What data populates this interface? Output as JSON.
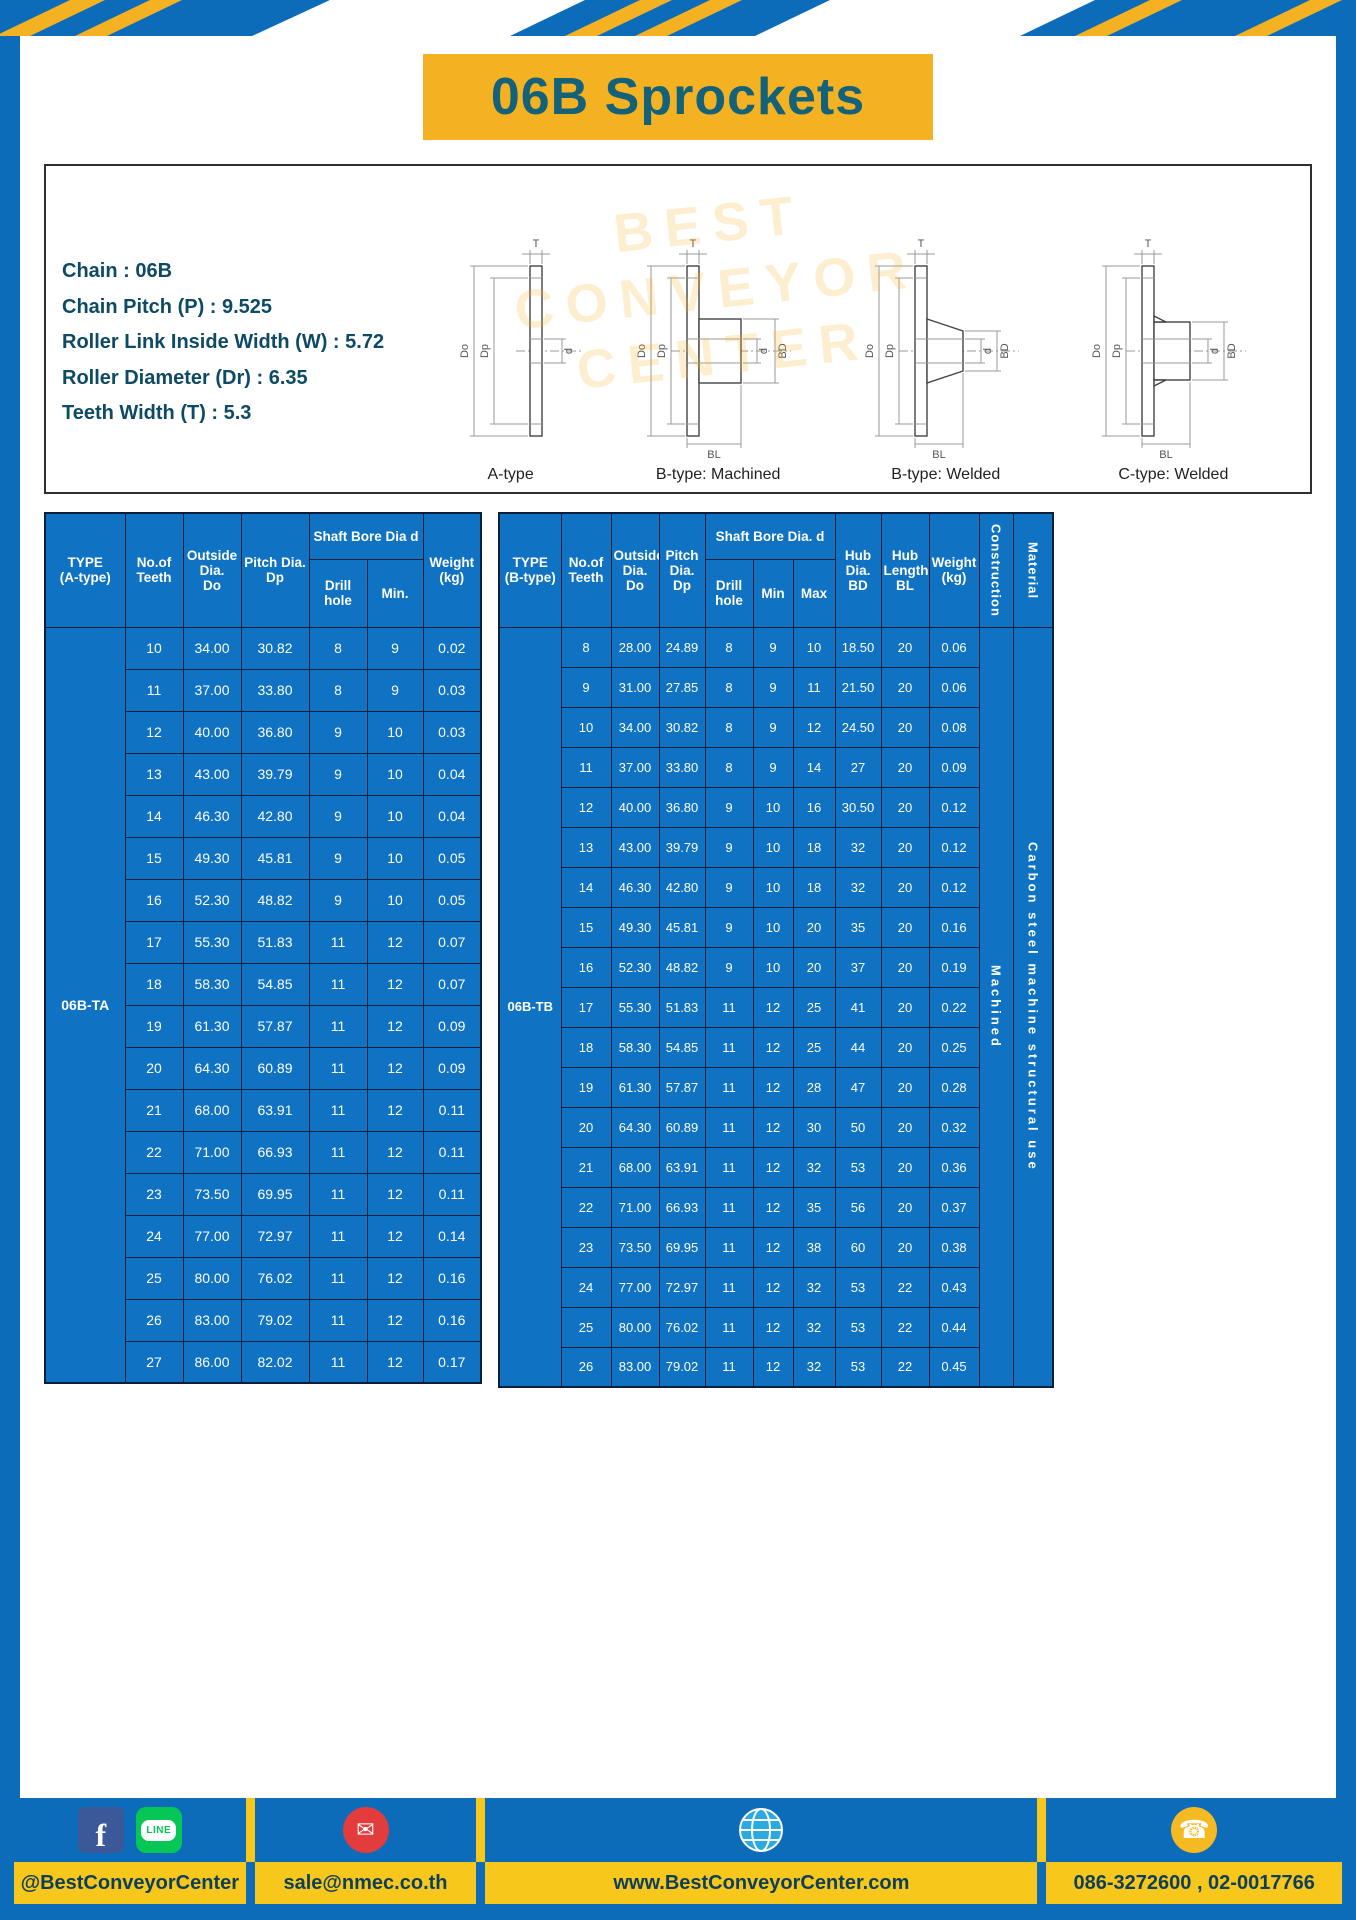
{
  "title": "06B Sprockets",
  "watermark": "BEST\nCONVEYOR\nCENTER",
  "colors": {
    "background_blue": "#0d6cba",
    "accent_yellow": "#f4b223",
    "table_blue": "#0f72c2",
    "title_teal": "#14617a",
    "grid_border": "#0b1f38",
    "footer_bar_yellow": "#f8c71c"
  },
  "specs": [
    "Chain : 06B",
    "Chain Pitch (P) : 9.525",
    "Roller Link Inside Width (W) : 5.72",
    "Roller Diameter (Dr) : 6.35",
    "Teeth Width (T) : 5.3"
  ],
  "drawings": [
    {
      "label": "A-type",
      "dims": [
        "T",
        "Do",
        "Dp",
        "d"
      ]
    },
    {
      "label": "B-type: Machined",
      "dims": [
        "T",
        "Do",
        "Dp",
        "d",
        "BD",
        "BL"
      ]
    },
    {
      "label": "B-type: Welded",
      "dims": [
        "T",
        "Do",
        "Dp",
        "d",
        "BD",
        "BL"
      ]
    },
    {
      "label": "C-type: Welded",
      "dims": [
        "T",
        "Do",
        "Dp",
        "d",
        "BD",
        "BL"
      ]
    }
  ],
  "table_a": {
    "headers": {
      "type": "TYPE\n(A-type)",
      "teeth": "No.of\nTeeth",
      "outside": "Outside\nDia.\nDo",
      "pitch": "Pitch Dia.\nDp",
      "bore_group": "Shaft Bore Dia d",
      "drill": "Drill hole",
      "min": "Min.",
      "weight": "Weight\n(kg)"
    },
    "type_label": "06B-TA",
    "rows": [
      [
        "10",
        "34.00",
        "30.82",
        "8",
        "9",
        "0.02"
      ],
      [
        "11",
        "37.00",
        "33.80",
        "8",
        "9",
        "0.03"
      ],
      [
        "12",
        "40.00",
        "36.80",
        "9",
        "10",
        "0.03"
      ],
      [
        "13",
        "43.00",
        "39.79",
        "9",
        "10",
        "0.04"
      ],
      [
        "14",
        "46.30",
        "42.80",
        "9",
        "10",
        "0.04"
      ],
      [
        "15",
        "49.30",
        "45.81",
        "9",
        "10",
        "0.05"
      ],
      [
        "16",
        "52.30",
        "48.82",
        "9",
        "10",
        "0.05"
      ],
      [
        "17",
        "55.30",
        "51.83",
        "11",
        "12",
        "0.07"
      ],
      [
        "18",
        "58.30",
        "54.85",
        "11",
        "12",
        "0.07"
      ],
      [
        "19",
        "61.30",
        "57.87",
        "11",
        "12",
        "0.09"
      ],
      [
        "20",
        "64.30",
        "60.89",
        "11",
        "12",
        "0.09"
      ],
      [
        "21",
        "68.00",
        "63.91",
        "11",
        "12",
        "0.11"
      ],
      [
        "22",
        "71.00",
        "66.93",
        "11",
        "12",
        "0.11"
      ],
      [
        "23",
        "73.50",
        "69.95",
        "11",
        "12",
        "0.11"
      ],
      [
        "24",
        "77.00",
        "72.97",
        "11",
        "12",
        "0.14"
      ],
      [
        "25",
        "80.00",
        "76.02",
        "11",
        "12",
        "0.16"
      ],
      [
        "26",
        "83.00",
        "79.02",
        "11",
        "12",
        "0.16"
      ],
      [
        "27",
        "86.00",
        "82.02",
        "11",
        "12",
        "0.17"
      ]
    ]
  },
  "table_b": {
    "headers": {
      "type": "TYPE\n(B-type)",
      "teeth": "No.of\nTeeth",
      "outside": "Outside\nDia.\nDo",
      "pitch": "Pitch\nDia.\nDp",
      "bore_group": "Shaft Bore Dia.  d",
      "drill": "Drill hole",
      "min": "Min",
      "max": "Max",
      "hub_dia": "Hub\nDia.\nBD",
      "hub_len": "Hub\nLength\nBL",
      "weight": "Weight\n(kg)",
      "construction": "Construction",
      "material": "Material"
    },
    "type_label": "06B-TB",
    "construction_value": "Machined",
    "material_value": "Carbon steel machine structural use",
    "rows": [
      [
        "8",
        "28.00",
        "24.89",
        "8",
        "9",
        "10",
        "18.50",
        "20",
        "0.06"
      ],
      [
        "9",
        "31.00",
        "27.85",
        "8",
        "9",
        "11",
        "21.50",
        "20",
        "0.06"
      ],
      [
        "10",
        "34.00",
        "30.82",
        "8",
        "9",
        "12",
        "24.50",
        "20",
        "0.08"
      ],
      [
        "11",
        "37.00",
        "33.80",
        "8",
        "9",
        "14",
        "27",
        "20",
        "0.09"
      ],
      [
        "12",
        "40.00",
        "36.80",
        "9",
        "10",
        "16",
        "30.50",
        "20",
        "0.12"
      ],
      [
        "13",
        "43.00",
        "39.79",
        "9",
        "10",
        "18",
        "32",
        "20",
        "0.12"
      ],
      [
        "14",
        "46.30",
        "42.80",
        "9",
        "10",
        "18",
        "32",
        "20",
        "0.12"
      ],
      [
        "15",
        "49.30",
        "45.81",
        "9",
        "10",
        "20",
        "35",
        "20",
        "0.16"
      ],
      [
        "16",
        "52.30",
        "48.82",
        "9",
        "10",
        "20",
        "37",
        "20",
        "0.19"
      ],
      [
        "17",
        "55.30",
        "51.83",
        "11",
        "12",
        "25",
        "41",
        "20",
        "0.22"
      ],
      [
        "18",
        "58.30",
        "54.85",
        "11",
        "12",
        "25",
        "44",
        "20",
        "0.25"
      ],
      [
        "19",
        "61.30",
        "57.87",
        "11",
        "12",
        "28",
        "47",
        "20",
        "0.28"
      ],
      [
        "20",
        "64.30",
        "60.89",
        "11",
        "12",
        "30",
        "50",
        "20",
        "0.32"
      ],
      [
        "21",
        "68.00",
        "63.91",
        "11",
        "12",
        "32",
        "53",
        "20",
        "0.36"
      ],
      [
        "22",
        "71.00",
        "66.93",
        "11",
        "12",
        "35",
        "56",
        "20",
        "0.37"
      ],
      [
        "23",
        "73.50",
        "69.95",
        "11",
        "12",
        "38",
        "60",
        "20",
        "0.38"
      ],
      [
        "24",
        "77.00",
        "72.97",
        "11",
        "12",
        "32",
        "53",
        "22",
        "0.43"
      ],
      [
        "25",
        "80.00",
        "76.02",
        "11",
        "12",
        "32",
        "53",
        "22",
        "0.44"
      ],
      [
        "26",
        "83.00",
        "79.02",
        "11",
        "12",
        "32",
        "53",
        "22",
        "0.45"
      ]
    ]
  },
  "footer": {
    "handle": "@BestConveyorCenter",
    "email": "sale@nmec.co.th",
    "website": "www.BestConveyorCenter.com",
    "phones": "086-3272600 , 02-0017766",
    "icons": {
      "facebook": "f",
      "line": "LINE",
      "email": "✉",
      "phone": "☎"
    }
  }
}
